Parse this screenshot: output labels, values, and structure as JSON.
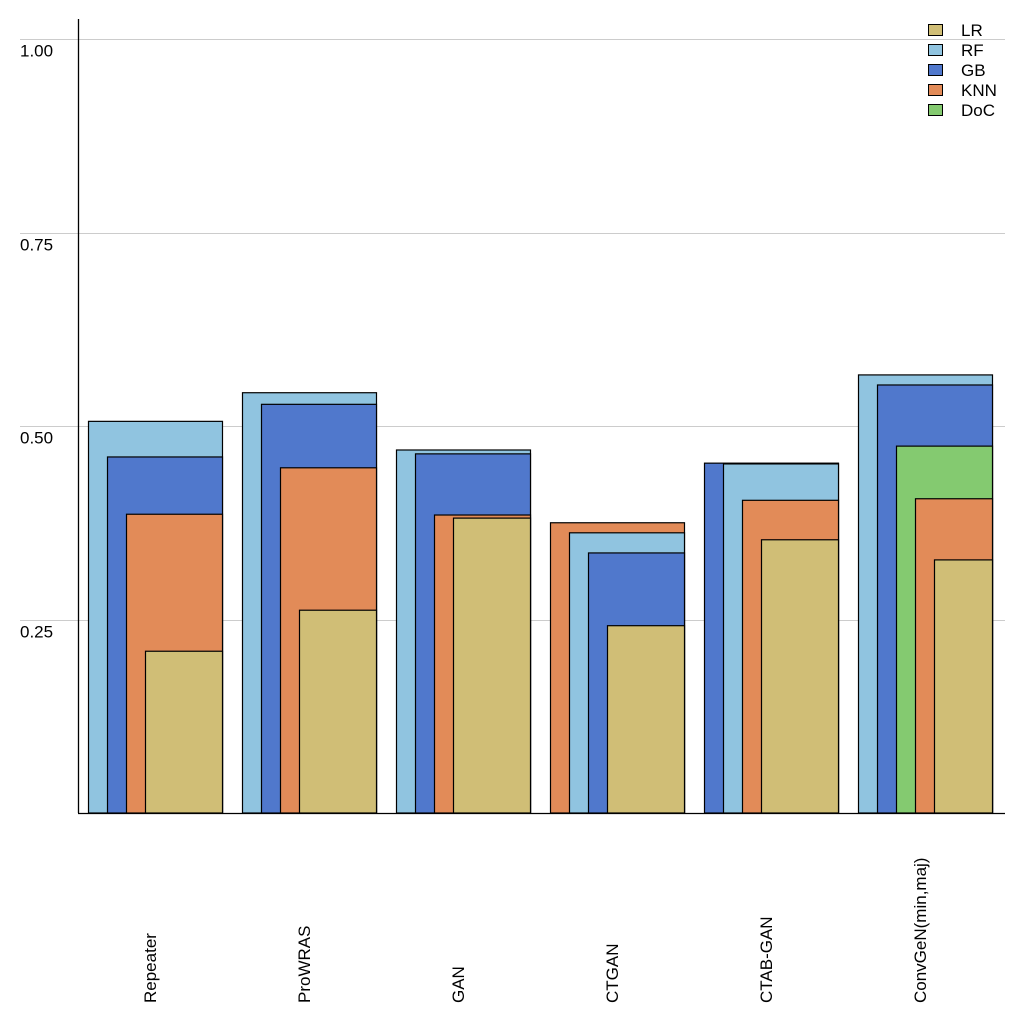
{
  "chart_data": {
    "type": "bar",
    "title": "",
    "xlabel": "",
    "ylabel": "",
    "ylim": [
      0,
      1.0
    ],
    "yticks": [
      0.25,
      0.5,
      0.75,
      1.0
    ],
    "ytick_labels": [
      "0.25",
      "0.50",
      "0.75",
      "1.00"
    ],
    "grid": true,
    "legend_position": "top-right",
    "layout": "overlapping-nested",
    "categories": [
      "Repeater",
      "ProWRAS",
      "GAN",
      "CTGAN",
      "CTAB-GAN",
      "ConvGeN(min,maj)"
    ],
    "series": [
      {
        "name": "LR",
        "color": "#d0be76",
        "values": [
          0.209,
          0.262,
          0.381,
          0.242,
          0.353,
          0.327
        ]
      },
      {
        "name": "RF",
        "color": "#90c4e0",
        "values": [
          0.506,
          0.543,
          0.469,
          0.362,
          0.451,
          0.566
        ]
      },
      {
        "name": "GB",
        "color": "#5078cc",
        "values": [
          0.46,
          0.528,
          0.464,
          0.336,
          0.452,
          0.553
        ]
      },
      {
        "name": "KNN",
        "color": "#e28b58",
        "values": [
          0.386,
          0.446,
          0.385,
          0.375,
          0.404,
          0.406
        ]
      },
      {
        "name": "DoC",
        "color": "#84ca70",
        "values": [
          null,
          null,
          null,
          null,
          null,
          0.474
        ]
      }
    ]
  }
}
